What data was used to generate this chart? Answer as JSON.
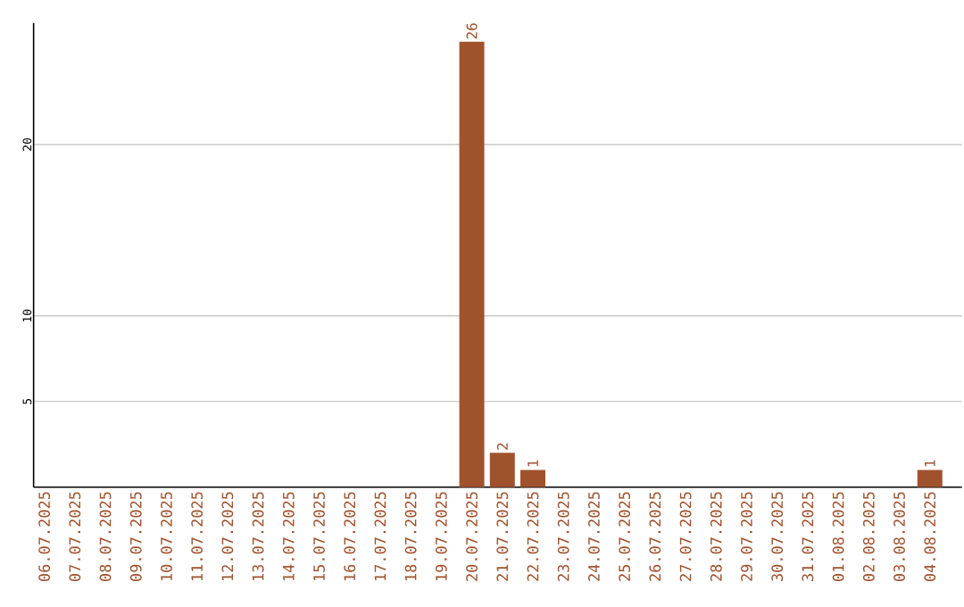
{
  "chart_data": {
    "type": "bar",
    "categories": [
      "06.07.2025",
      "07.07.2025",
      "08.07.2025",
      "09.07.2025",
      "10.07.2025",
      "11.07.2025",
      "12.07.2025",
      "13.07.2025",
      "14.07.2025",
      "15.07.2025",
      "16.07.2025",
      "17.07.2025",
      "18.07.2025",
      "19.07.2025",
      "20.07.2025",
      "21.07.2025",
      "22.07.2025",
      "23.07.2025",
      "24.07.2025",
      "25.07.2025",
      "26.07.2025",
      "27.07.2025",
      "28.07.2025",
      "29.07.2025",
      "30.07.2025",
      "31.07.2025",
      "01.08.2025",
      "02.08.2025",
      "03.08.2025",
      "04.08.2025"
    ],
    "values": [
      0,
      0,
      0,
      0,
      0,
      0,
      0,
      0,
      0,
      0,
      0,
      0,
      0,
      0,
      26,
      2,
      1,
      0,
      0,
      0,
      0,
      0,
      0,
      0,
      0,
      0,
      0,
      0,
      0,
      1
    ],
    "value_labels": [
      null,
      null,
      null,
      null,
      null,
      null,
      null,
      null,
      null,
      null,
      null,
      null,
      null,
      null,
      "26",
      "2",
      "1",
      null,
      null,
      null,
      null,
      null,
      null,
      null,
      null,
      null,
      null,
      null,
      null,
      "1"
    ],
    "color": "#a0522d",
    "ylim": [
      0,
      27.1
    ],
    "yticks": [
      5,
      10,
      20
    ],
    "grid": "y"
  }
}
